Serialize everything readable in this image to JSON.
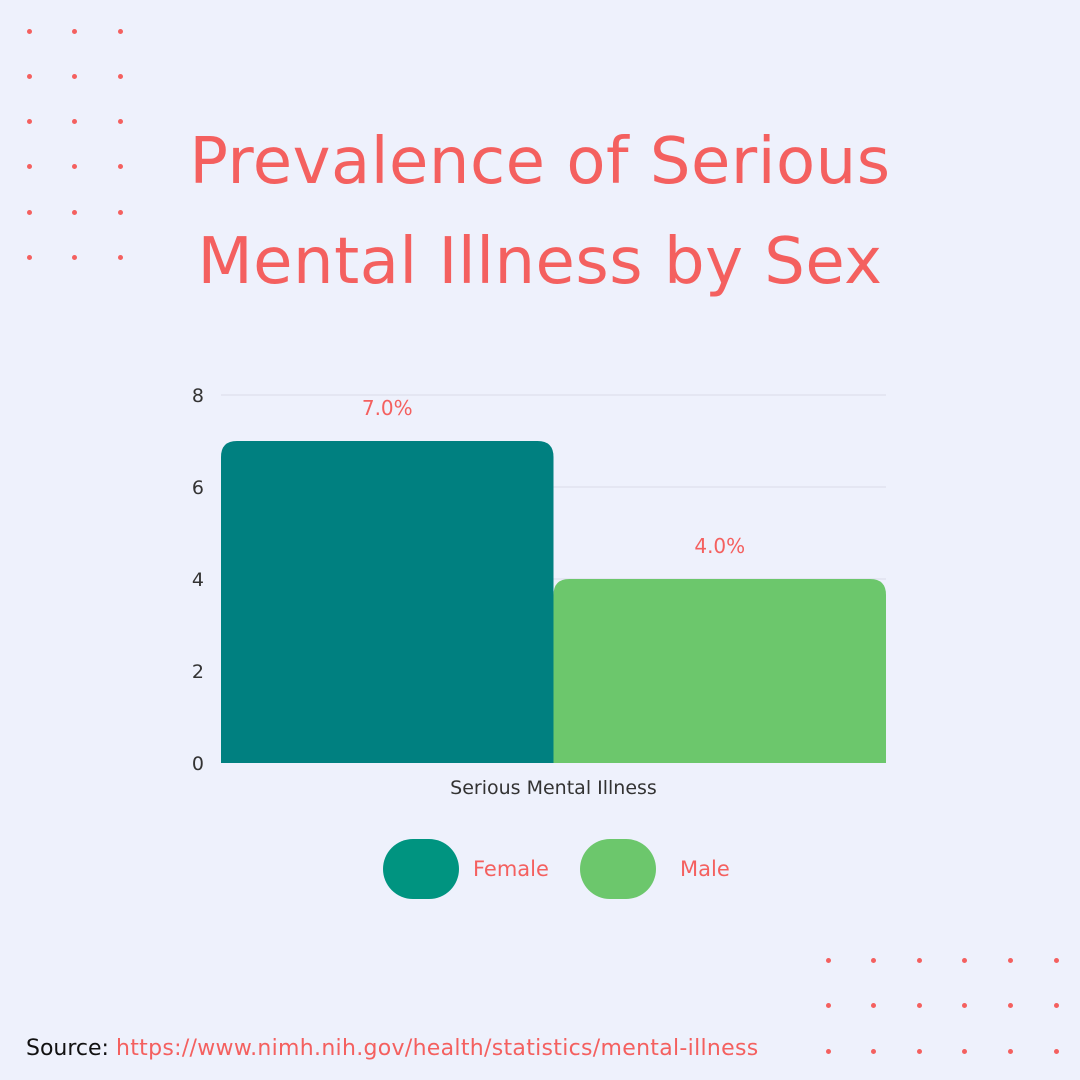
{
  "title": "Prevalence of Serious Mental Illness by Sex",
  "colors": {
    "accent": "#F4605F",
    "background": "#EEF1FC",
    "female": "#008080",
    "male": "#6CC76C",
    "female_legend": "#009480"
  },
  "chart_data": {
    "type": "bar",
    "title": "Prevalence of Serious Mental Illness by Sex",
    "categories": [
      "Serious Mental Illness"
    ],
    "series": [
      {
        "name": "Female",
        "values": [
          7.0
        ],
        "label": "7.0%",
        "color": "#008080"
      },
      {
        "name": "Male",
        "values": [
          4.0
        ],
        "label": "4.0%",
        "color": "#6CC76C"
      }
    ],
    "y_ticks": [
      "0",
      "2",
      "4",
      "6",
      "8"
    ],
    "ylim": [
      0,
      8
    ],
    "grid": true,
    "legend_position": "bottom",
    "xlabel": "",
    "ylabel": ""
  },
  "source": {
    "label": "Source:",
    "url": "https://www.nimh.nih.gov/health/statistics/mental-illness"
  }
}
